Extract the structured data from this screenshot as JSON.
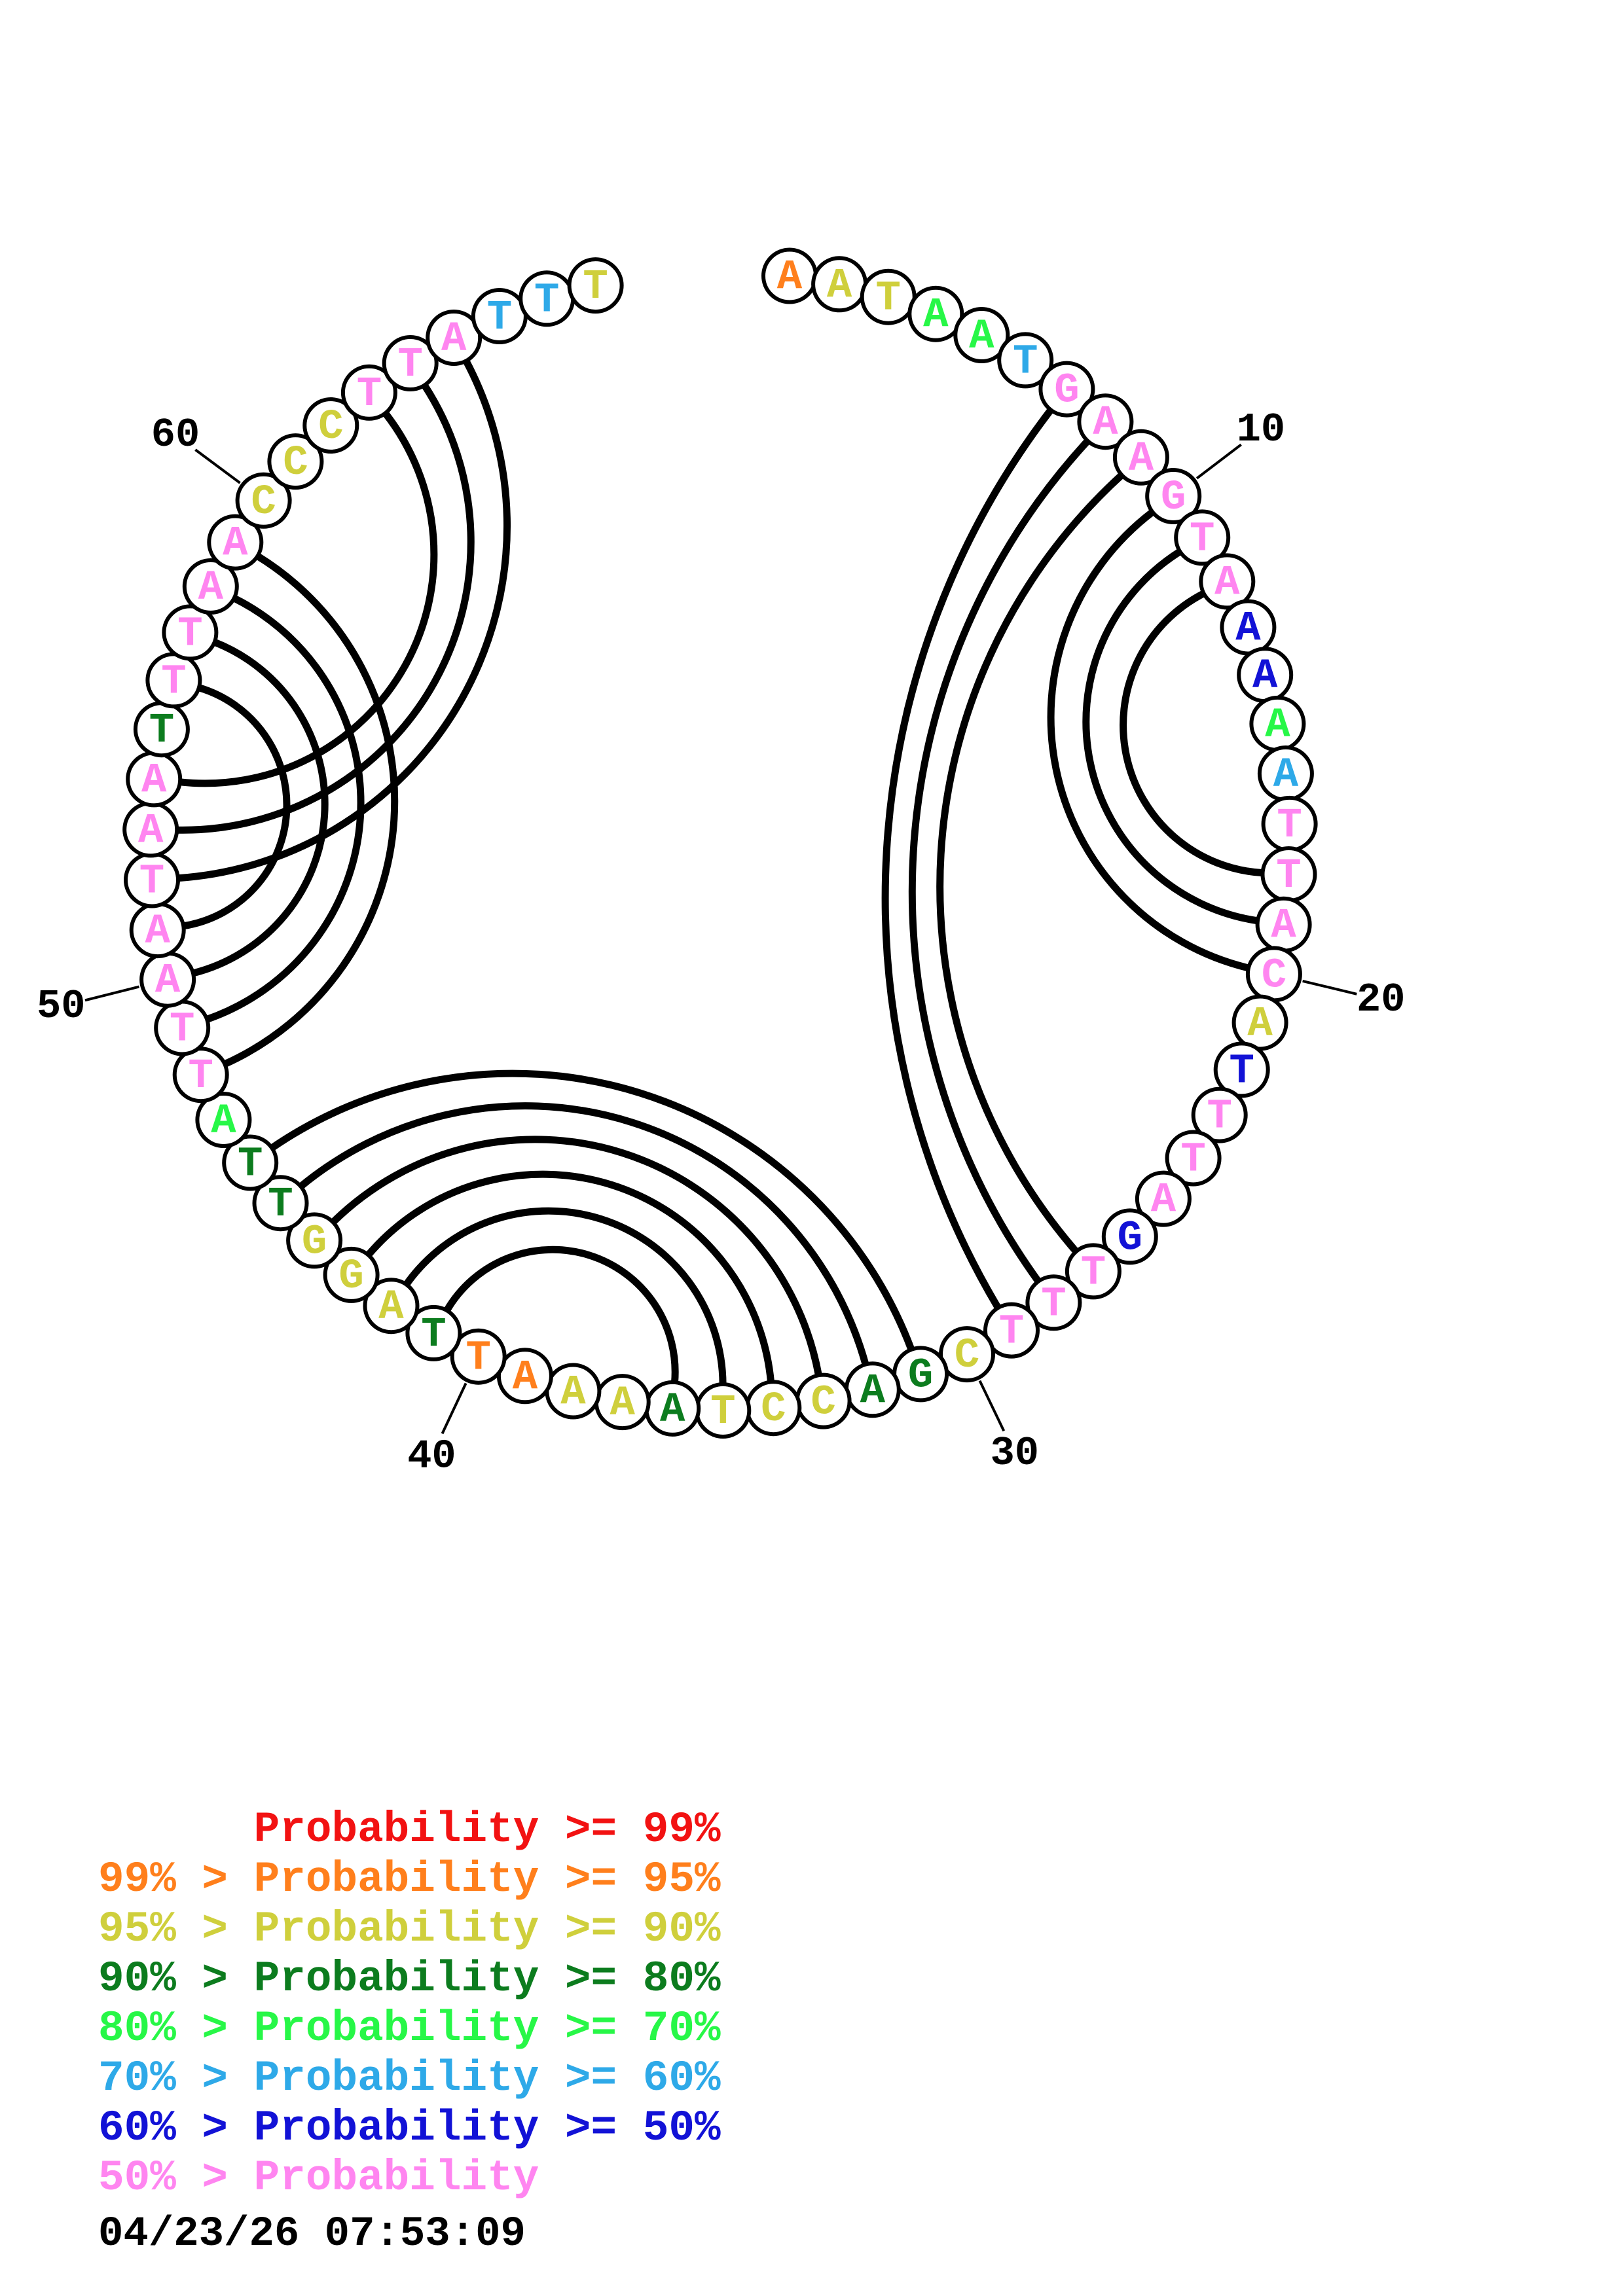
{
  "plot": {
    "sequence": "AATAATGAAGTAAAAATTACATTTAGTTTCGACCTAAAATTAGGTTATTAATAATTTAACCCTTATTT",
    "prob_classes": [
      "p95",
      "p90",
      "p90",
      "p70",
      "p70",
      "p60",
      "lt50",
      "lt50",
      "lt50",
      "lt50",
      "lt50",
      "lt50",
      "p50",
      "p50",
      "p70",
      "p60",
      "lt50",
      "lt50",
      "lt50",
      "lt50",
      "p90",
      "p50",
      "lt50",
      "lt50",
      "lt50",
      "p50",
      "lt50",
      "lt50",
      "lt50",
      "p90",
      "p80",
      "p80",
      "p90",
      "p90",
      "p90",
      "p80",
      "p90",
      "p90",
      "p95",
      "p95",
      "p80",
      "p90",
      "p90",
      "p90",
      "p80",
      "p80",
      "p70",
      "lt50",
      "lt50",
      "lt50",
      "lt50",
      "lt50",
      "lt50",
      "lt50",
      "p80",
      "lt50",
      "lt50",
      "lt50",
      "lt50",
      "p90",
      "p90",
      "p90",
      "lt50",
      "lt50",
      "lt50",
      "p60",
      "p60",
      "p90"
    ],
    "pairs": [
      [
        7,
        29
      ],
      [
        8,
        28
      ],
      [
        9,
        27
      ],
      [
        10,
        20
      ],
      [
        11,
        19
      ],
      [
        12,
        18
      ],
      [
        31,
        46
      ],
      [
        32,
        45
      ],
      [
        33,
        44
      ],
      [
        34,
        43
      ],
      [
        35,
        42
      ],
      [
        36,
        41
      ],
      [
        48,
        59
      ],
      [
        49,
        58
      ],
      [
        50,
        57
      ],
      [
        51,
        56
      ],
      [
        52,
        65
      ],
      [
        53,
        64
      ],
      [
        54,
        63
      ]
    ],
    "position_labels": [
      "10",
      "20",
      "30",
      "40",
      "50",
      "60"
    ]
  },
  "colors": {
    "p99": "#f21212",
    "p95": "#ff7f1c",
    "p90": "#cfcf3c",
    "p80": "#0c7c1e",
    "p70": "#27f747",
    "p60": "#2ea9e8",
    "p50": "#1212d6",
    "lt50": "#ff85f0",
    "arc": "#000000",
    "node_stroke": "#000000",
    "node_fill": "#ffffff"
  },
  "legend": {
    "lines": [
      {
        "text": "      Probability >= 99%",
        "class": "p99"
      },
      {
        "text": "99% > Probability >= 95%",
        "class": "p95"
      },
      {
        "text": "95% > Probability >= 90%",
        "class": "p90"
      },
      {
        "text": "90% > Probability >= 80%",
        "class": "p80"
      },
      {
        "text": "80% > Probability >= 70%",
        "class": "p70"
      },
      {
        "text": "70% > Probability >= 60%",
        "class": "p60"
      },
      {
        "text": "60% > Probability >= 50%",
        "class": "p50"
      },
      {
        "text": "50% > Probability",
        "class": "lt50"
      }
    ]
  },
  "timestamp": "04/23/26 07:53:09"
}
